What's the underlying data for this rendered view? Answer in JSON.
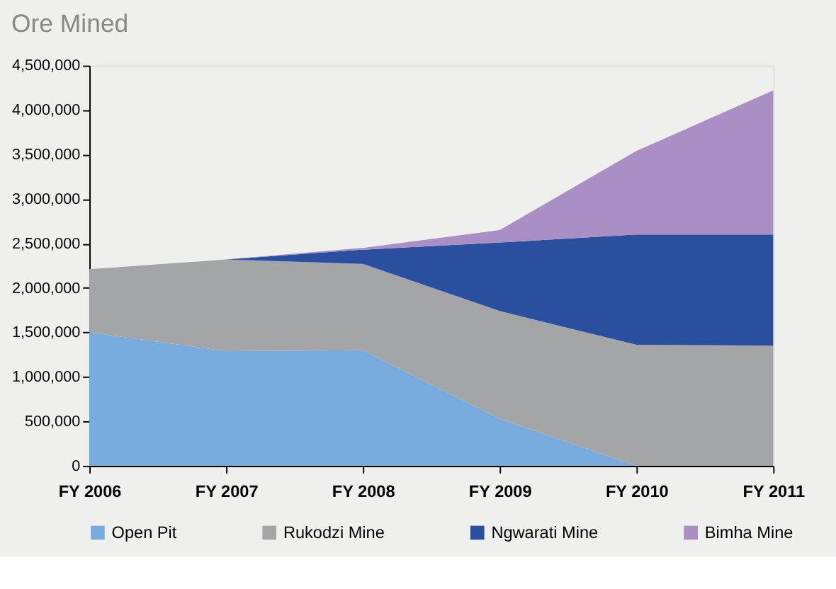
{
  "chart_data": {
    "type": "area",
    "title": "Ore Mined",
    "stacked": true,
    "categories": [
      "FY 2006",
      "FY 2007",
      "FY 2008",
      "FY 2009",
      "FY 2010",
      "FY 2011"
    ],
    "series": [
      {
        "name": "Open Pit",
        "color": "#78acdf",
        "values": [
          1500000,
          1290000,
          1300000,
          530000,
          0,
          0
        ]
      },
      {
        "name": "Rukodzi Mine",
        "color": "#a3a5a6",
        "values": [
          710000,
          1030000,
          970000,
          1210000,
          1360000,
          1350000
        ]
      },
      {
        "name": "Ngwarati Mine",
        "color": "#2a4f9f",
        "values": [
          0,
          0,
          160000,
          770000,
          1240000,
          1250000
        ]
      },
      {
        "name": "Bimha Mine",
        "color": "#a98fc4",
        "values": [
          0,
          0,
          20000,
          140000,
          940000,
          1620000
        ]
      }
    ],
    "ylim": [
      0,
      4500000
    ],
    "yticks": [
      0,
      {
        "value": 500000,
        "label": "500,000"
      },
      {
        "value": 1000000,
        "label": "1,000,000"
      },
      {
        "value": 1500000,
        "label": "1,500,000"
      },
      {
        "value": 2000000,
        "label": "2,000,000"
      },
      {
        "value": 2500000,
        "label": "2,500,000"
      },
      {
        "value": 3000000,
        "label": "3,000,000"
      },
      {
        "value": 3500000,
        "label": "3,500,000"
      },
      {
        "value": 4000000,
        "label": "4,000,000"
      },
      {
        "value": 4500000,
        "label": "4,500,000"
      }
    ],
    "grid": false,
    "legend": "bottom"
  }
}
